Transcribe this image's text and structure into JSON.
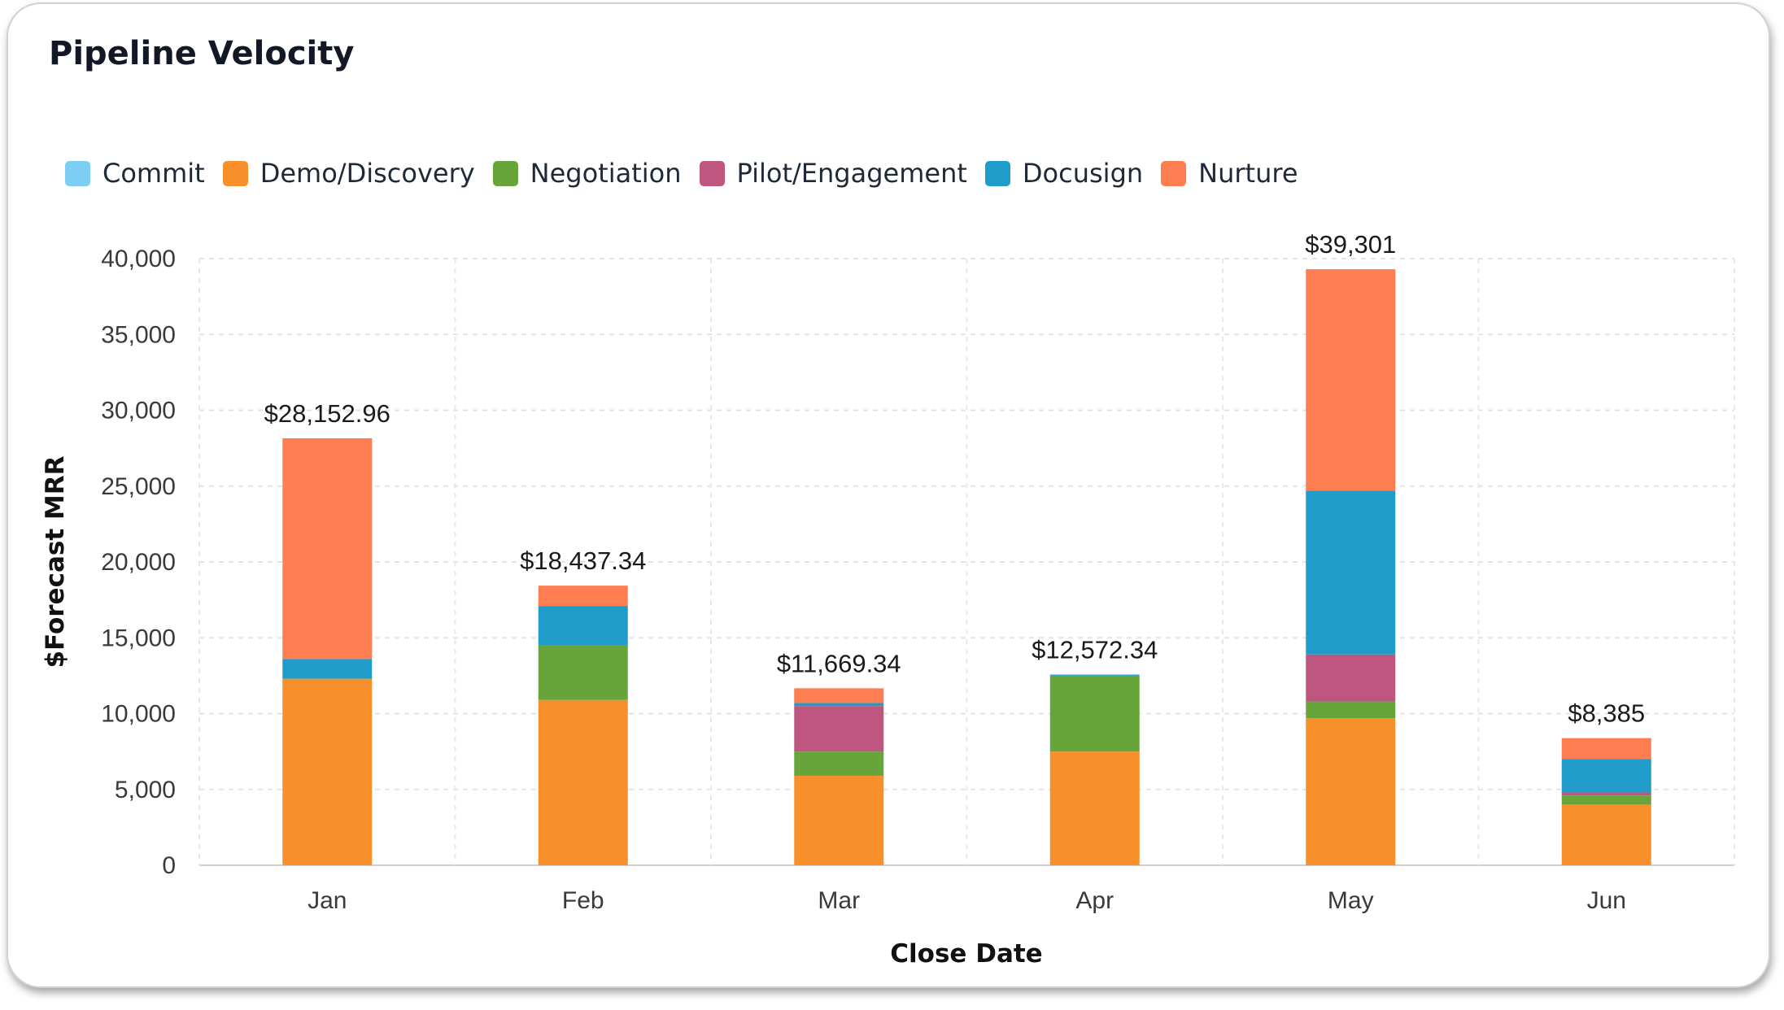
{
  "card": {
    "title": "Pipeline Velocity"
  },
  "chart_data": {
    "type": "bar",
    "stacked": true,
    "title": "Pipeline Velocity",
    "xlabel": "Close Date",
    "ylabel": "$Forecast MRR",
    "categories": [
      "Jan",
      "Feb",
      "Mar",
      "Apr",
      "May",
      "Jun"
    ],
    "ylim": [
      0,
      40000
    ],
    "yticks": [
      "0",
      "5,000",
      "10,000",
      "15,000",
      "20,000",
      "25,000",
      "30,000",
      "35,000",
      "40,000"
    ],
    "grid": true,
    "legend_position": "top-left",
    "series": [
      {
        "name": "Commit",
        "color": "#7dcff2",
        "values": [
          0,
          0,
          0,
          0,
          0,
          0
        ]
      },
      {
        "name": "Demo/Discovery",
        "color": "#f78f2a",
        "values": [
          12300,
          10900,
          5900,
          7500,
          9700,
          4000
        ]
      },
      {
        "name": "Negotiation",
        "color": "#67a53b",
        "values": [
          0,
          3600,
          1600,
          5000,
          1100,
          600
        ]
      },
      {
        "name": "Pilot/Engagement",
        "color": "#be5680",
        "values": [
          0,
          0,
          3000,
          0,
          3100,
          200
        ]
      },
      {
        "name": "Docusign",
        "color": "#209ccb",
        "values": [
          1300,
          2600,
          200,
          72,
          10800,
          2200
        ]
      },
      {
        "name": "Nurture",
        "color": "#fe7e52",
        "values": [
          14553,
          1337,
          969,
          0,
          14601,
          1385
        ]
      }
    ],
    "totals": [
      "$28,152.96",
      "$18,437.34",
      "$11,669.34",
      "$12,572.34",
      "$39,301",
      "$8,385"
    ]
  }
}
